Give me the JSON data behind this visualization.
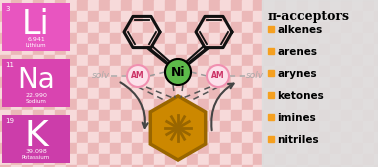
{
  "bg_color": "#f2c8c8",
  "gingham_light": "#f7dada",
  "gingham_dark": "#ebb8b8",
  "right_panel_color": "#dedede",
  "li_box_color": "#e855c0",
  "na_box_color": "#d944b0",
  "k_box_color": "#cc3daa",
  "ni_color": "#5dba4a",
  "ni_border": "#000000",
  "am_color": "#fce0ea",
  "am_border": "#f090b0",
  "am_text_color": "#cc3366",
  "hexagon_face": "#cc8800",
  "hexagon_edge": "#996600",
  "orange_bullet": "#f5a020",
  "arrow_color": "#444444",
  "solv_color": "#aaaaaa",
  "dash_color": "#999999",
  "bond_color": "#111111",
  "elements": [
    {
      "symbol": "Li",
      "number": "3",
      "mass": "6.941",
      "name": "Lithium"
    },
    {
      "symbol": "Na",
      "number": "11",
      "mass": "22.990",
      "name": "Sodium"
    },
    {
      "symbol": "K",
      "number": "19",
      "mass": "39.098",
      "name": "Potassium"
    }
  ],
  "pi_acceptors": [
    "alkenes",
    "arenes",
    "arynes",
    "ketones",
    "imines",
    "nitriles"
  ],
  "pi_title": "π-acceptors",
  "fig_w": 3.78,
  "fig_h": 1.67,
  "dpi": 100
}
